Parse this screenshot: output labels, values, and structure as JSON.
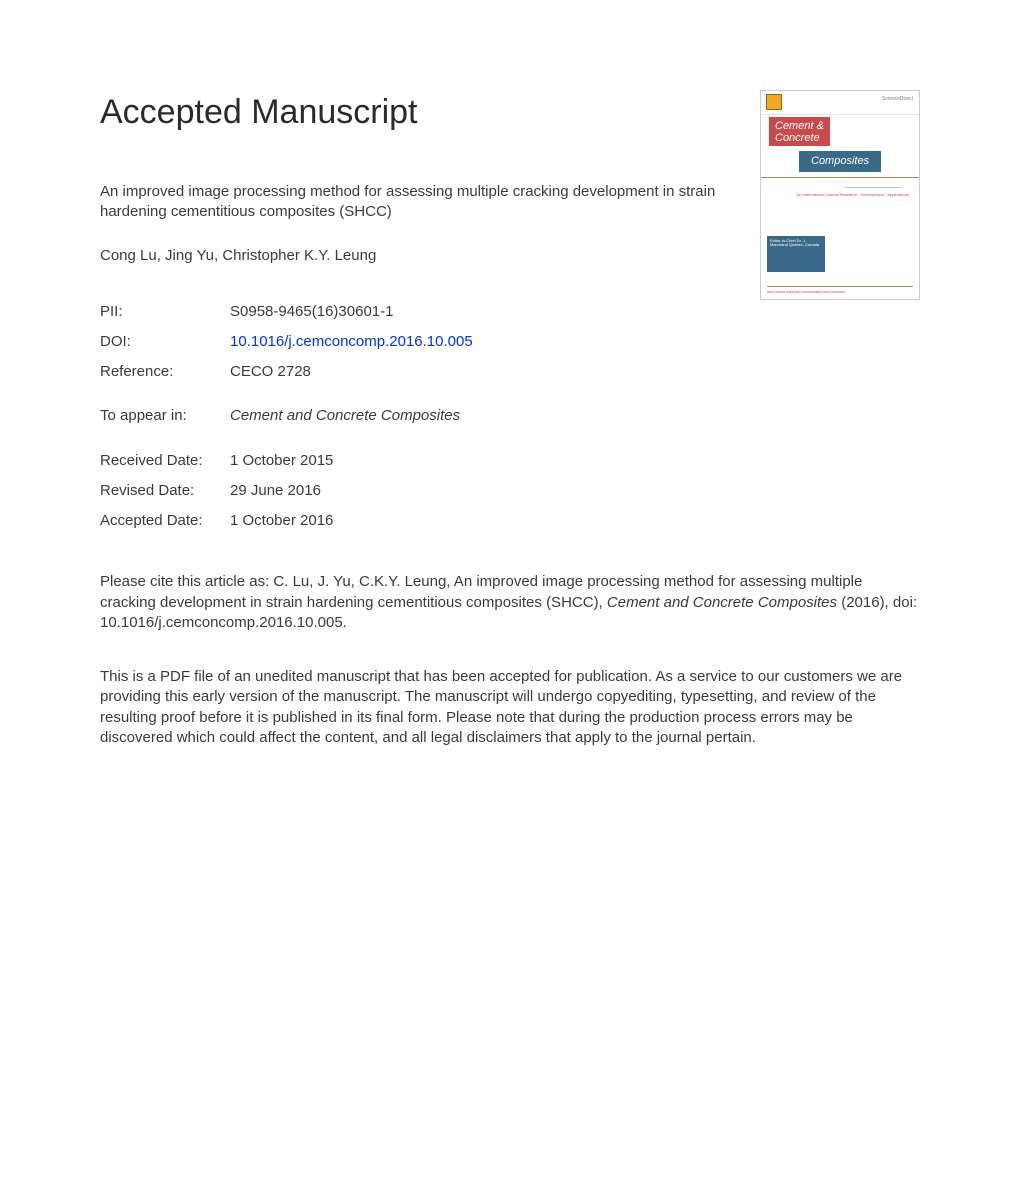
{
  "heading": "Accepted Manuscript",
  "title": "An improved image processing method for assessing multiple cracking development in strain hardening cementitious composites (SHCC)",
  "authors": "Cong Lu, Jing Yu, Christopher K.Y. Leung",
  "meta": {
    "pii_label": "PII:",
    "pii_value": "S0958-9465(16)30601-1",
    "doi_label": "DOI:",
    "doi_value": "10.1016/j.cemconcomp.2016.10.005",
    "ref_label": "Reference:",
    "ref_value": "CECO 2728",
    "appear_label": "To appear in:",
    "appear_value": "Cement and Concrete Composites",
    "received_label": "Received Date:",
    "received_value": "1 October 2015",
    "revised_label": "Revised Date:",
    "revised_value": "29 June 2016",
    "accepted_label": "Accepted Date:",
    "accepted_value": "1 October 2016"
  },
  "cite_prefix": "Please cite this article as: C. Lu, J. Yu, C.K.Y. Leung, An improved image processing method for assessing multiple cracking development in strain hardening cementitious composites (SHCC), ",
  "cite_journal": "Cement and Concrete Composites",
  "cite_suffix": " (2016), doi: 10.1016/j.cemconcomp.2016.10.005.",
  "disclaimer": "This is a PDF file of an unedited manuscript that has been accepted for publication. As a service to our customers we are providing this early version of the manuscript. The manuscript will undergo copyediting, typesetting, and review of the resulting proof before it is published in its final form. Please note that during the production process errors may be discovered which could affect the content, and all legal disclaimers that apply to the journal pertain.",
  "cover": {
    "brand": "ScienceDirect",
    "line1": "Cement &",
    "line2": "Concrete",
    "band": "Composites",
    "sub": "An International Journal\nResearch · Development · Applications",
    "leftbox": "Editor-in-Chief\nDr. J. Marchand\nQuébec, Canada",
    "bottom": "http://www.elsevier.com/locate/cemconcomp"
  },
  "colors": {
    "text": "#3a3a3a",
    "link": "#0033ee",
    "cover_red": "#c94a4a",
    "cover_blue": "#3a6a8a",
    "cover_rule": "#b5855a"
  }
}
